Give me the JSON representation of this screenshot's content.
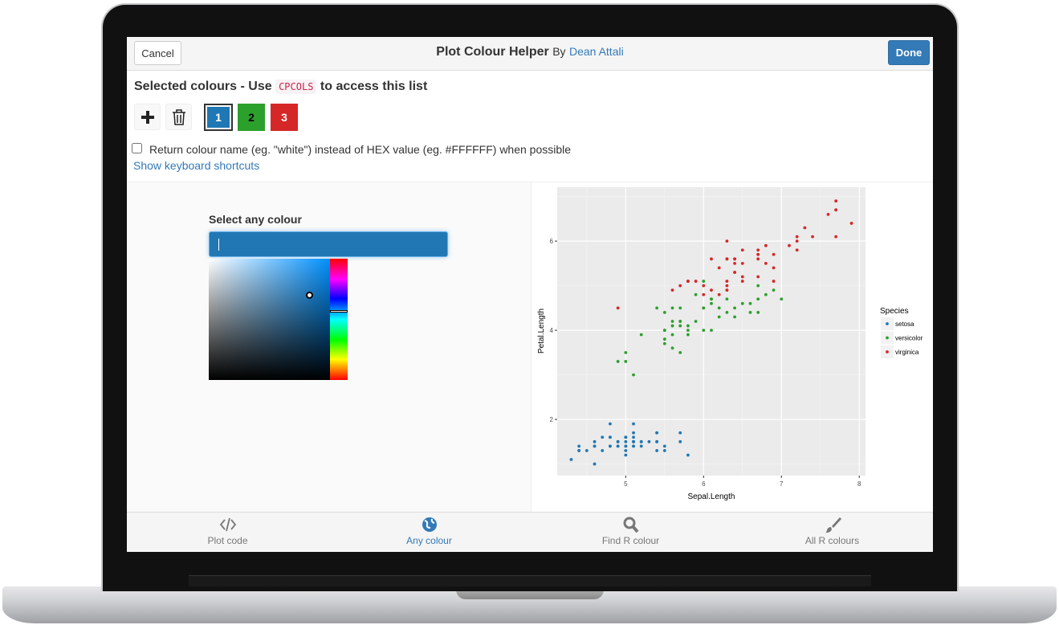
{
  "header": {
    "cancel": "Cancel",
    "title": "Plot Colour Helper",
    "by": "By",
    "author": "Dean Attali",
    "done": "Done"
  },
  "selected": {
    "heading_before": "Selected colours - Use",
    "code": "CPCOLS",
    "heading_after": "to access this list",
    "swatches": [
      {
        "label": "1",
        "color": "#1f77b4"
      },
      {
        "label": "2",
        "color": "#2ca02c"
      },
      {
        "label": "3",
        "color": "#d62728"
      }
    ],
    "checkbox_label": "Return colour name (eg. \"white\") instead of HEX value (eg. #FFFFFF) when possible",
    "shortcuts_link": "Show keyboard shortcuts"
  },
  "picker": {
    "label": "Select any colour"
  },
  "chart_data": {
    "type": "scatter",
    "x_label": "Sepal.Length",
    "y_label": "Petal.Length",
    "legend_title": "Species",
    "legend": "right",
    "grid": true,
    "xlim": [
      4.12,
      8.08
    ],
    "ylim": [
      0.74,
      7.21
    ],
    "xticks": [
      5,
      6,
      7,
      8
    ],
    "yticks": [
      2,
      4,
      6
    ],
    "series": [
      {
        "name": "setosa",
        "color": "#1f77b4",
        "x": [
          5.1,
          4.9,
          4.7,
          4.6,
          5.0,
          5.4,
          4.6,
          5.0,
          4.4,
          4.9,
          5.4,
          4.8,
          4.8,
          4.3,
          5.8,
          5.7,
          5.4,
          5.1,
          5.7,
          5.1,
          5.4,
          5.1,
          4.6,
          5.1,
          4.8,
          5.0,
          5.0,
          5.2,
          5.2,
          4.7,
          4.8,
          5.4,
          5.2,
          5.5,
          4.9,
          5.0,
          5.5,
          4.9,
          4.4,
          5.1,
          5.0,
          4.5,
          4.4,
          5.0,
          5.1,
          4.8,
          5.1,
          4.6,
          5.3,
          5.0
        ],
        "values": [
          1.4,
          1.4,
          1.3,
          1.5,
          1.4,
          1.7,
          1.4,
          1.5,
          1.4,
          1.5,
          1.5,
          1.6,
          1.4,
          1.1,
          1.2,
          1.5,
          1.3,
          1.4,
          1.7,
          1.5,
          1.7,
          1.5,
          1.0,
          1.7,
          1.9,
          1.6,
          1.6,
          1.5,
          1.4,
          1.6,
          1.6,
          1.5,
          1.5,
          1.4,
          1.5,
          1.2,
          1.3,
          1.4,
          1.3,
          1.5,
          1.3,
          1.3,
          1.3,
          1.6,
          1.9,
          1.4,
          1.6,
          1.4,
          1.5,
          1.4
        ]
      },
      {
        "name": "versicolor",
        "color": "#2ca02c",
        "x": [
          7.0,
          6.4,
          6.9,
          5.5,
          6.5,
          5.7,
          6.3,
          4.9,
          6.6,
          5.2,
          5.0,
          5.9,
          6.0,
          6.1,
          5.6,
          6.7,
          5.6,
          5.8,
          6.2,
          5.6,
          5.9,
          6.1,
          6.3,
          6.1,
          6.4,
          6.6,
          6.8,
          6.7,
          6.0,
          5.7,
          5.5,
          5.5,
          5.8,
          6.0,
          5.4,
          6.0,
          6.7,
          6.3,
          5.6,
          5.5,
          5.5,
          6.1,
          5.8,
          5.0,
          5.6,
          5.7,
          5.7,
          6.2,
          5.1,
          5.7
        ],
        "values": [
          4.7,
          4.5,
          4.9,
          4.0,
          4.6,
          4.5,
          4.7,
          3.3,
          4.6,
          3.9,
          3.5,
          4.2,
          4.0,
          4.7,
          3.6,
          4.4,
          4.5,
          4.1,
          4.5,
          3.9,
          4.8,
          4.0,
          4.9,
          4.7,
          4.3,
          4.4,
          4.8,
          5.0,
          4.5,
          3.5,
          3.8,
          3.7,
          3.9,
          5.1,
          4.5,
          4.5,
          4.7,
          4.4,
          4.1,
          4.0,
          4.4,
          4.6,
          4.0,
          3.3,
          4.2,
          4.2,
          4.2,
          4.3,
          3.0,
          4.1
        ]
      },
      {
        "name": "virginica",
        "color": "#d62728",
        "x": [
          6.3,
          5.8,
          7.1,
          6.3,
          6.5,
          7.6,
          4.9,
          7.3,
          6.7,
          7.2,
          6.5,
          6.4,
          6.8,
          5.7,
          5.8,
          6.4,
          6.5,
          7.7,
          7.7,
          6.0,
          6.9,
          5.6,
          7.7,
          6.3,
          6.7,
          7.2,
          6.2,
          6.1,
          6.4,
          7.2,
          7.4,
          7.9,
          6.4,
          6.3,
          6.1,
          7.7,
          6.3,
          6.4,
          6.0,
          6.9,
          6.7,
          6.9,
          5.8,
          6.8,
          6.7,
          6.7,
          6.3,
          6.5,
          6.2,
          5.9
        ],
        "values": [
          6.0,
          5.1,
          5.9,
          5.6,
          5.8,
          6.6,
          4.5,
          6.3,
          5.8,
          6.1,
          5.1,
          5.3,
          5.5,
          5.0,
          5.1,
          5.3,
          5.5,
          6.7,
          6.9,
          5.0,
          5.7,
          4.9,
          6.7,
          4.9,
          5.7,
          6.0,
          4.8,
          4.9,
          5.6,
          5.8,
          6.1,
          6.4,
          5.6,
          5.1,
          5.6,
          6.1,
          5.6,
          5.5,
          4.8,
          5.4,
          5.6,
          5.1,
          5.1,
          5.9,
          5.7,
          5.2,
          5.0,
          5.2,
          5.4,
          5.1
        ]
      }
    ]
  },
  "tabs": [
    "Plot code",
    "Any colour",
    "Find R colour",
    "All R colours"
  ]
}
